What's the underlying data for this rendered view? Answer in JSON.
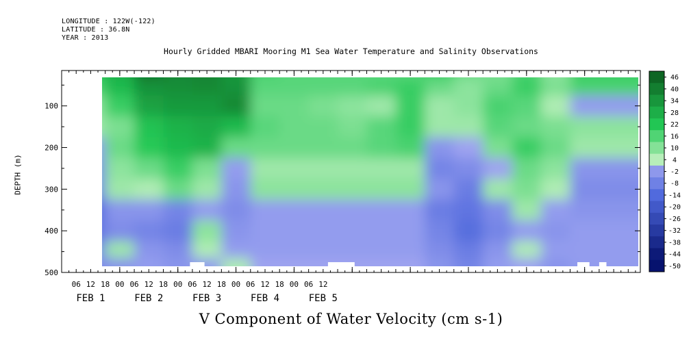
{
  "header": {
    "longitude": "LONGITUDE : 122W(-122)",
    "latitude": "LATITUDE : 36.8N",
    "year": "YEAR : 2013"
  },
  "chart_data": {
    "type": "heatmap",
    "title": "Hourly Gridded MBARI Mooring M1 Sea Water Temperature and Salinity Observations",
    "xlabel": "V Component of Water Velocity (cm s-1)",
    "ylabel": "DEPTH (m)",
    "y_ticks": [
      100,
      200,
      300,
      400,
      500
    ],
    "y_range": [
      15,
      500
    ],
    "y_inverted": true,
    "x_hour_ticks": [
      "06",
      "12",
      "18",
      "00",
      "06",
      "12",
      "18",
      "00",
      "06",
      "12",
      "18",
      "00",
      "06",
      "12",
      "18",
      "00",
      "06",
      "12"
    ],
    "x_day_labels": [
      "FEB  1",
      "FEB  2",
      "FEB  3",
      "FEB  4",
      "FEB  5"
    ],
    "colorbar_ticks": [
      "46",
      "40",
      "34",
      "28",
      "22",
      "16",
      "10",
      "4",
      "-2",
      "-8",
      "-14",
      "-20",
      "-26",
      "-32",
      "-38",
      "-44",
      "-50"
    ],
    "colorbar_range": [
      -50,
      50
    ],
    "colors": {
      "pos_light": "#c0f0c0",
      "pos_mid": "#22c855",
      "pos_dark": "#0c5a1e",
      "neg_light": "#a8abf3",
      "neg_mid": "#4e68dc",
      "neg_dark": "#06126e"
    },
    "data_depths_m": [
      20,
      50,
      100,
      150,
      200,
      250,
      300,
      350,
      400,
      450,
      480
    ],
    "data_times_h": [
      12,
      24,
      36,
      48,
      60,
      72,
      84,
      96,
      108,
      120,
      132,
      144,
      156,
      168,
      180,
      192,
      204,
      216
    ],
    "values": [
      [
        18,
        25,
        40,
        35,
        36,
        30,
        14,
        12,
        12,
        12,
        12,
        12,
        16,
        10,
        8,
        14,
        6,
        16
      ],
      [
        14,
        22,
        32,
        33,
        34,
        32,
        12,
        12,
        12,
        12,
        14,
        16,
        10,
        6,
        10,
        16,
        8,
        14
      ],
      [
        6,
        16,
        28,
        30,
        30,
        34,
        10,
        10,
        8,
        6,
        4,
        16,
        4,
        6,
        14,
        12,
        2,
        -4
      ],
      [
        4,
        8,
        20,
        24,
        26,
        22,
        12,
        10,
        10,
        8,
        12,
        16,
        4,
        4,
        12,
        10,
        8,
        6
      ],
      [
        -4,
        10,
        18,
        22,
        24,
        10,
        10,
        10,
        10,
        10,
        12,
        14,
        -6,
        -2,
        8,
        16,
        10,
        4
      ],
      [
        -8,
        6,
        10,
        16,
        8,
        -4,
        4,
        4,
        4,
        4,
        4,
        4,
        -10,
        -8,
        -2,
        10,
        6,
        -6
      ],
      [
        -10,
        4,
        2,
        10,
        4,
        -6,
        6,
        6,
        6,
        6,
        6,
        6,
        -6,
        -12,
        4,
        8,
        2,
        -8
      ],
      [
        -16,
        -6,
        -6,
        -10,
        -4,
        -8,
        -4,
        -4,
        -4,
        -4,
        -4,
        -4,
        -12,
        -14,
        -8,
        4,
        -4,
        -6
      ],
      [
        -14,
        -8,
        -10,
        -12,
        6,
        -6,
        -4,
        -4,
        -4,
        -4,
        -4,
        -4,
        -10,
        -16,
        -10,
        -4,
        -6,
        -4
      ],
      [
        -10,
        4,
        -6,
        -8,
        2,
        -4,
        -4,
        -4,
        -4,
        -4,
        -4,
        -4,
        -8,
        -12,
        -6,
        2,
        -4,
        -4
      ],
      [
        -8,
        -6,
        -4,
        -6,
        -4,
        2,
        -2,
        -2,
        -2,
        -2,
        -2,
        -2,
        -6,
        -10,
        -4,
        -2,
        -6,
        -4
      ]
    ]
  }
}
